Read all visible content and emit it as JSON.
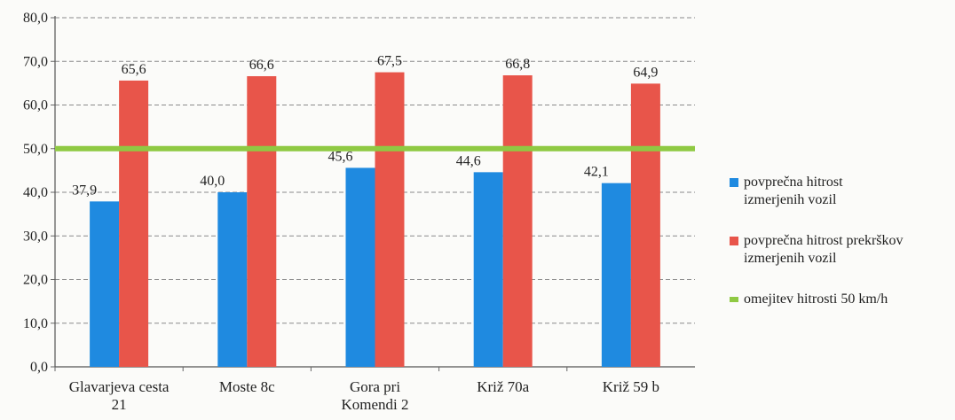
{
  "chart_data": {
    "type": "bar",
    "categories": [
      "Glavarjeva cesta\n21",
      "Moste 8c",
      "Gora pri\nKomendi 2",
      "Križ 70a",
      "Križ 59 b"
    ],
    "series": [
      {
        "name": "povprečna hitrost\nizmerjenih vozil",
        "color": "#1f8ae0",
        "values": [
          37.9,
          40.0,
          45.6,
          44.6,
          42.1
        ],
        "labels": [
          "37,9",
          "40,0",
          "45,6",
          "44,6",
          "42,1"
        ]
      },
      {
        "name": "povprečna hitrost prekrškov\nizmerjenih vozil",
        "color": "#e8554a",
        "values": [
          65.6,
          66.6,
          67.5,
          66.8,
          64.9
        ],
        "labels": [
          "65,6",
          "66,6",
          "67,5",
          "66,8",
          "64,9"
        ]
      }
    ],
    "reference_line": {
      "name": "omejitev hitrosti 50 km/h",
      "value": 50,
      "color": "#8fc943"
    },
    "yticks": [
      "0,0",
      "10,0",
      "20,0",
      "30,0",
      "40,0",
      "50,0",
      "60,0",
      "70,0",
      "80,0"
    ],
    "ylim": [
      0,
      80
    ],
    "grid": true,
    "legend_position": "right"
  }
}
